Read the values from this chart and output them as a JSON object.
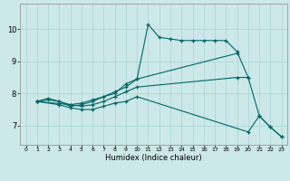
{
  "xlabel": "Humidex (Indice chaleur)",
  "bg_color": "#cce8e8",
  "line_color": "#006666",
  "grid_color": "#aad4d4",
  "xlim": [
    -0.5,
    23.5
  ],
  "ylim": [
    6.4,
    10.8
  ],
  "xticks": [
    0,
    1,
    2,
    3,
    4,
    5,
    6,
    7,
    8,
    9,
    10,
    11,
    12,
    13,
    14,
    15,
    16,
    17,
    18,
    19,
    20,
    21,
    22,
    23
  ],
  "yticks": [
    7,
    8,
    9,
    10
  ],
  "series": [
    {
      "x": [
        1,
        2,
        3,
        4,
        5,
        6,
        7,
        8,
        9,
        10,
        11,
        12,
        13,
        14,
        15,
        16,
        17,
        18,
        19,
        20,
        21,
        22,
        23
      ],
      "y": [
        7.75,
        7.85,
        7.75,
        7.6,
        7.65,
        7.75,
        7.9,
        8.0,
        8.3,
        8.45,
        10.15,
        9.75,
        9.7,
        9.65,
        9.65,
        9.65,
        9.65,
        9.65,
        9.3,
        8.5,
        7.3,
        6.95,
        6.65
      ]
    },
    {
      "x": [
        1,
        2,
        3,
        4,
        5,
        6,
        7,
        8,
        9,
        10,
        19
      ],
      "y": [
        7.75,
        7.8,
        7.75,
        7.65,
        7.7,
        7.8,
        7.9,
        8.05,
        8.2,
        8.45,
        9.25
      ]
    },
    {
      "x": [
        1,
        4,
        5,
        6,
        7,
        8,
        9,
        10,
        19,
        20
      ],
      "y": [
        7.75,
        7.65,
        7.6,
        7.65,
        7.75,
        7.9,
        8.05,
        8.2,
        8.5,
        8.5
      ]
    },
    {
      "x": [
        1,
        3,
        4,
        5,
        6,
        7,
        8,
        9,
        10,
        20,
        21,
        22,
        23
      ],
      "y": [
        7.75,
        7.65,
        7.55,
        7.5,
        7.5,
        7.6,
        7.7,
        7.75,
        7.9,
        6.8,
        7.3,
        6.95,
        6.65
      ]
    }
  ]
}
